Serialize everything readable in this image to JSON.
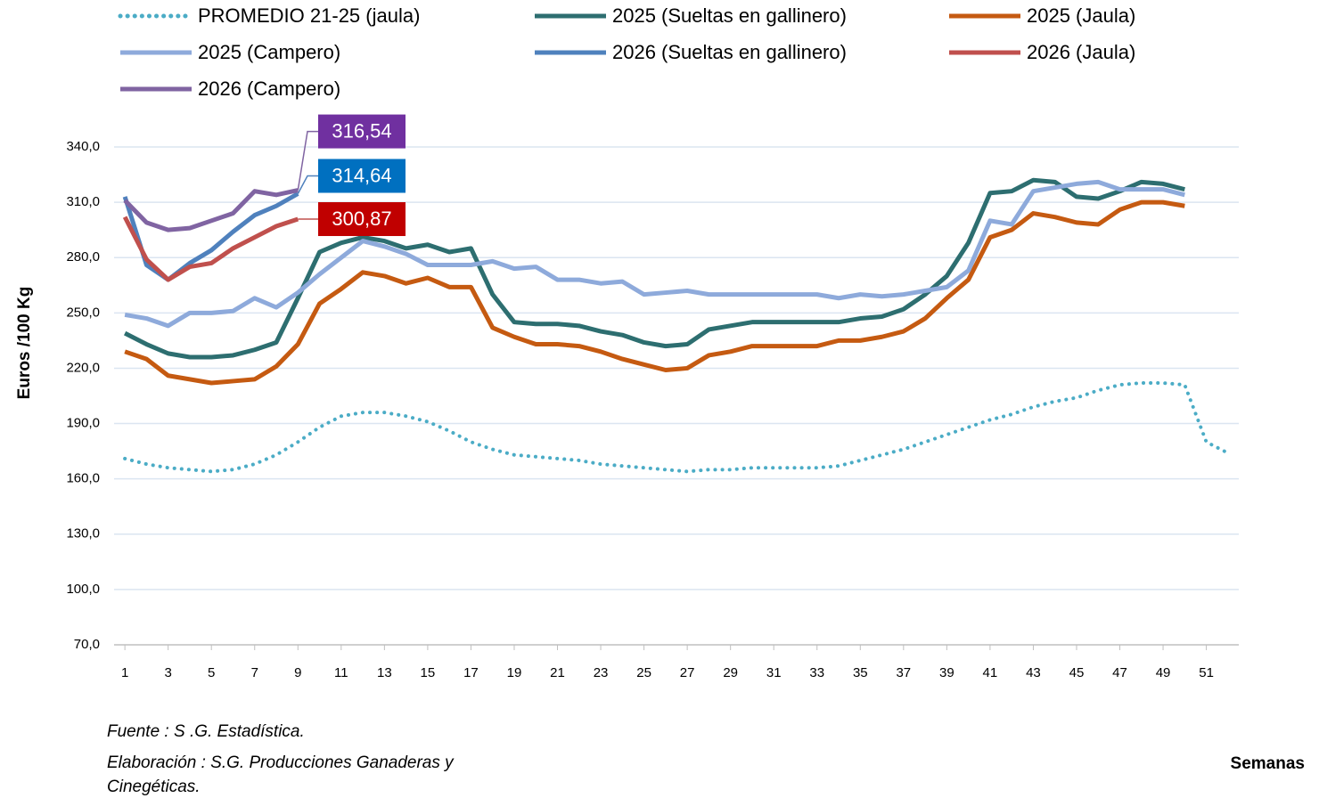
{
  "chart_data": {
    "type": "line",
    "ylabel": "Euros /100 Kg",
    "xlabel": "Semanas",
    "notes": [
      "Fuente :  S .G. Estadística.",
      "Elaboración : S.G. Producciones Ganaderas y",
      "Cinegéticas."
    ],
    "x": [
      1,
      2,
      3,
      4,
      5,
      6,
      7,
      8,
      9,
      10,
      11,
      12,
      13,
      14,
      15,
      16,
      17,
      18,
      19,
      20,
      21,
      22,
      23,
      24,
      25,
      26,
      27,
      28,
      29,
      30,
      31,
      32,
      33,
      34,
      35,
      36,
      37,
      38,
      39,
      40,
      41,
      42,
      43,
      44,
      45,
      46,
      47,
      48,
      49,
      50,
      51,
      52
    ],
    "xlim": [
      0.5,
      52.5
    ],
    "xticks": [
      1,
      3,
      5,
      7,
      9,
      11,
      13,
      15,
      17,
      19,
      21,
      23,
      25,
      27,
      29,
      31,
      33,
      35,
      37,
      39,
      41,
      43,
      45,
      47,
      49,
      51
    ],
    "ylim": [
      70,
      340
    ],
    "yticks": [
      {
        "value": 70,
        "label": "70,0"
      },
      {
        "value": 100,
        "label": "100,0"
      },
      {
        "value": 130,
        "label": "130,0"
      },
      {
        "value": 160,
        "label": "160,0"
      },
      {
        "value": 190,
        "label": "190,0"
      },
      {
        "value": 220,
        "label": "220,0"
      },
      {
        "value": 250,
        "label": "250,0"
      },
      {
        "value": 280,
        "label": "280,0"
      },
      {
        "value": 310,
        "label": "310,0"
      },
      {
        "value": 340,
        "label": "340,0"
      }
    ],
    "grid": true,
    "series": [
      {
        "name": "PROMEDIO 21-25 (jaula)",
        "color": "#4bacc6",
        "dash": "dotted",
        "values": [
          171,
          168,
          166,
          165,
          164,
          165,
          168,
          173,
          180,
          188,
          194,
          196,
          196,
          194,
          191,
          186,
          180,
          176,
          173,
          172,
          171,
          170,
          168,
          167,
          166,
          165,
          164,
          165,
          165,
          166,
          166,
          166,
          166,
          167,
          170,
          173,
          176,
          180,
          184,
          188,
          192,
          195,
          199,
          202,
          204,
          208,
          211,
          212,
          212,
          211,
          180,
          174
        ]
      },
      {
        "name": "2025 (Sueltas en gallinero)",
        "color": "#2d6e70",
        "values": [
          239,
          233,
          228,
          226,
          226,
          227,
          230,
          234,
          258,
          283,
          288,
          291,
          289,
          285,
          287,
          283,
          285,
          260,
          245,
          244,
          244,
          243,
          240,
          238,
          234,
          232,
          233,
          241,
          243,
          245,
          245,
          245,
          245,
          245,
          247,
          248,
          252,
          260,
          270,
          288,
          315,
          316,
          322,
          321,
          313,
          312,
          316,
          321,
          320,
          317,
          null,
          null
        ]
      },
      {
        "name": "2025 (Jaula)",
        "color": "#c55a11",
        "values": [
          229,
          225,
          216,
          214,
          212,
          213,
          214,
          221,
          233,
          255,
          263,
          272,
          270,
          266,
          269,
          264,
          264,
          242,
          237,
          233,
          233,
          232,
          229,
          225,
          222,
          219,
          220,
          227,
          229,
          232,
          232,
          232,
          232,
          235,
          235,
          237,
          240,
          247,
          258,
          268,
          291,
          295,
          304,
          302,
          299,
          298,
          306,
          310,
          310,
          308,
          null,
          null
        ]
      },
      {
        "name": "2025 (Campero)",
        "color": "#8eaadb",
        "values": [
          249,
          247,
          243,
          250,
          250,
          251,
          258,
          253,
          261,
          271,
          280,
          289,
          286,
          282,
          276,
          276,
          276,
          278,
          274,
          275,
          268,
          268,
          266,
          267,
          260,
          261,
          262,
          260,
          260,
          260,
          260,
          260,
          260,
          258,
          260,
          259,
          260,
          262,
          264,
          273,
          300,
          298,
          316,
          318,
          320,
          321,
          317,
          317,
          317,
          314,
          null,
          null
        ]
      },
      {
        "name": "2026 (Sueltas en gallinero)",
        "color": "#4f81bd",
        "label_color": "#0070c0",
        "values": [
          313,
          276,
          268,
          277,
          284,
          294,
          303,
          308,
          314.64,
          null,
          null,
          null,
          null,
          null,
          null,
          null,
          null,
          null,
          null,
          null,
          null,
          null,
          null,
          null,
          null,
          null,
          null,
          null,
          null,
          null,
          null,
          null,
          null,
          null,
          null,
          null,
          null,
          null,
          null,
          null,
          null,
          null,
          null,
          null,
          null,
          null,
          null,
          null,
          null,
          null,
          null,
          null
        ],
        "value_labels": [
          null,
          null,
          null,
          null,
          null,
          null,
          null,
          null,
          "314,64",
          null,
          null,
          null,
          null,
          null,
          null,
          null,
          null,
          null,
          null,
          null,
          null,
          null,
          null,
          null,
          null,
          null,
          null,
          null,
          null,
          null,
          null,
          null,
          null,
          null,
          null,
          null,
          null,
          null,
          null,
          null,
          null,
          null,
          null,
          null,
          null,
          null,
          null,
          null,
          null,
          null,
          null,
          null
        ]
      },
      {
        "name": "2026 (Jaula)",
        "color": "#c0504d",
        "label_color": "#c00000",
        "values": [
          302,
          279,
          268,
          275,
          277,
          285,
          291,
          297,
          300.87,
          null,
          null,
          null,
          null,
          null,
          null,
          null,
          null,
          null,
          null,
          null,
          null,
          null,
          null,
          null,
          null,
          null,
          null,
          null,
          null,
          null,
          null,
          null,
          null,
          null,
          null,
          null,
          null,
          null,
          null,
          null,
          null,
          null,
          null,
          null,
          null,
          null,
          null,
          null,
          null,
          null,
          null,
          null
        ],
        "value_labels": [
          null,
          null,
          null,
          null,
          null,
          null,
          null,
          null,
          "300,87",
          null,
          null,
          null,
          null,
          null,
          null,
          null,
          null,
          null,
          null,
          null,
          null,
          null,
          null,
          null,
          null,
          null,
          null,
          null,
          null,
          null,
          null,
          null,
          null,
          null,
          null,
          null,
          null,
          null,
          null,
          null,
          null,
          null,
          null,
          null,
          null,
          null,
          null,
          null,
          null,
          null,
          null,
          null
        ]
      },
      {
        "name": "2026 (Campero)",
        "color": "#8064a2",
        "label_color": "#7030a0",
        "values": [
          311,
          299,
          295,
          296,
          300,
          304,
          316,
          314,
          316.54,
          null,
          null,
          null,
          null,
          null,
          null,
          null,
          null,
          null,
          null,
          null,
          null,
          null,
          null,
          null,
          null,
          null,
          null,
          null,
          null,
          null,
          null,
          null,
          null,
          null,
          null,
          null,
          null,
          null,
          null,
          null,
          null,
          null,
          null,
          null,
          null,
          null,
          null,
          null,
          null,
          null,
          null,
          null
        ],
        "value_labels": [
          null,
          null,
          null,
          null,
          null,
          null,
          null,
          null,
          "316,54",
          null,
          null,
          null,
          null,
          null,
          null,
          null,
          null,
          null,
          null,
          null,
          null,
          null,
          null,
          null,
          null,
          null,
          null,
          null,
          null,
          null,
          null,
          null,
          null,
          null,
          null,
          null,
          null,
          null,
          null,
          null,
          null,
          null,
          null,
          null,
          null,
          null,
          null,
          null,
          null,
          null,
          null,
          null
        ]
      }
    ]
  }
}
